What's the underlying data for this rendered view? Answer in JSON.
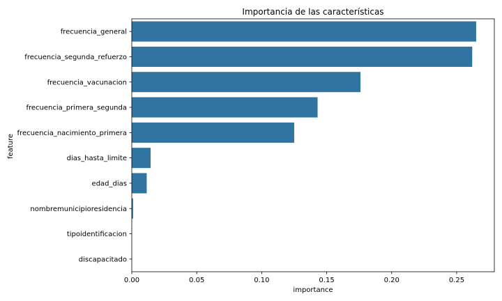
{
  "chart_data": {
    "type": "bar",
    "orientation": "horizontal",
    "title": "Importancia de las características",
    "xlabel": "importance",
    "ylabel": "feature",
    "categories": [
      "frecuencia_general",
      "frecuencia_segunda_refuerzo",
      "frecuencia_vacunacion",
      "frecuencia_primera_segunda",
      "frecuencia_nacimiento_primera",
      "dias_hasta_limite",
      "edad_dias",
      "nombremunicipioresidencia",
      "tipoidentificacion",
      "discapacitado"
    ],
    "values": [
      0.265,
      0.262,
      0.176,
      0.143,
      0.125,
      0.0145,
      0.0115,
      0.001,
      0.0,
      0.0
    ],
    "xlim": [
      0,
      0.279
    ],
    "xticks": [
      0.0,
      0.05,
      0.1,
      0.15,
      0.2,
      0.25
    ],
    "xtick_labels": [
      "0.00",
      "0.05",
      "0.10",
      "0.15",
      "0.20",
      "0.25"
    ],
    "bar_color": "#3274a1",
    "grid": false
  }
}
